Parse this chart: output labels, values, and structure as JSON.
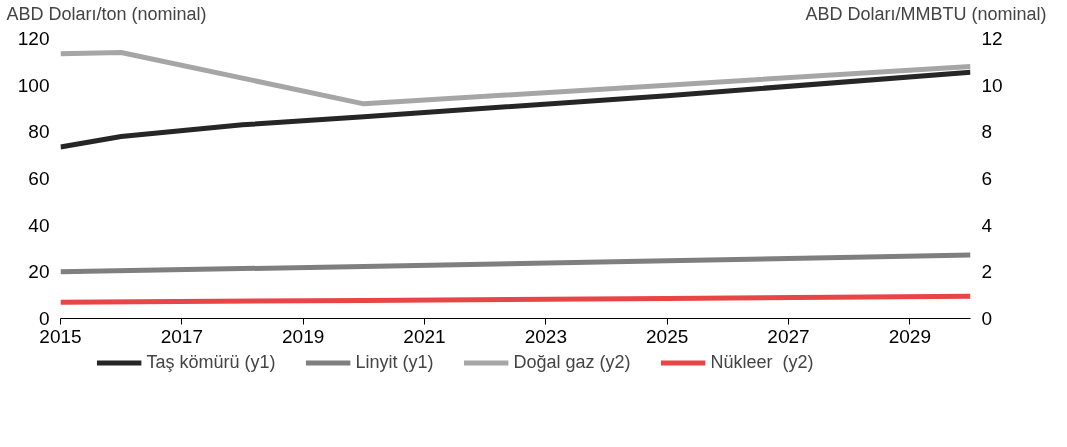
{
  "chart_data": {
    "type": "line",
    "ylabel": "ABD Doları/ton (nominal)",
    "y2label": "ABD Doları/MMBTU (nominal)",
    "xlim": [
      2015,
      2030
    ],
    "xticks": [
      2015,
      2017,
      2019,
      2021,
      2023,
      2025,
      2027,
      2029
    ],
    "ylim": [
      0,
      120
    ],
    "yticks": [
      0,
      20,
      40,
      60,
      80,
      100,
      120
    ],
    "y2lim": [
      0,
      12
    ],
    "y2ticks": [
      0,
      2,
      4,
      6,
      8,
      10,
      12
    ],
    "grid": false,
    "legend": "bottom",
    "series": [
      {
        "name": "Taş kömürü (y1)",
        "color": "#262626",
        "x": [
          2015,
          2016,
          2018,
          2020,
          2025,
          2030
        ],
        "values": [
          73.5,
          78,
          83,
          86.5,
          95.5,
          105.5
        ]
      },
      {
        "name": "Linyit (y1)",
        "color": "#7f7f7f",
        "x": [
          2015,
          2020,
          2025,
          2030
        ],
        "values": [
          20,
          22.3,
          24.7,
          27.2
        ]
      },
      {
        "name": "Doğal gaz (y2)",
        "color": "#a6a6a6",
        "axis": "y2",
        "x": [
          2015,
          2016,
          2020,
          2025,
          2030
        ],
        "values": [
          11.35,
          11.4,
          9.2,
          10,
          10.8
        ]
      },
      {
        "name": "Nükleer  (y2)",
        "color": "#e84646",
        "axis": "y2",
        "x": [
          2015,
          2020,
          2025,
          2030
        ],
        "values": [
          0.7,
          0.77,
          0.86,
          0.95
        ]
      }
    ]
  }
}
